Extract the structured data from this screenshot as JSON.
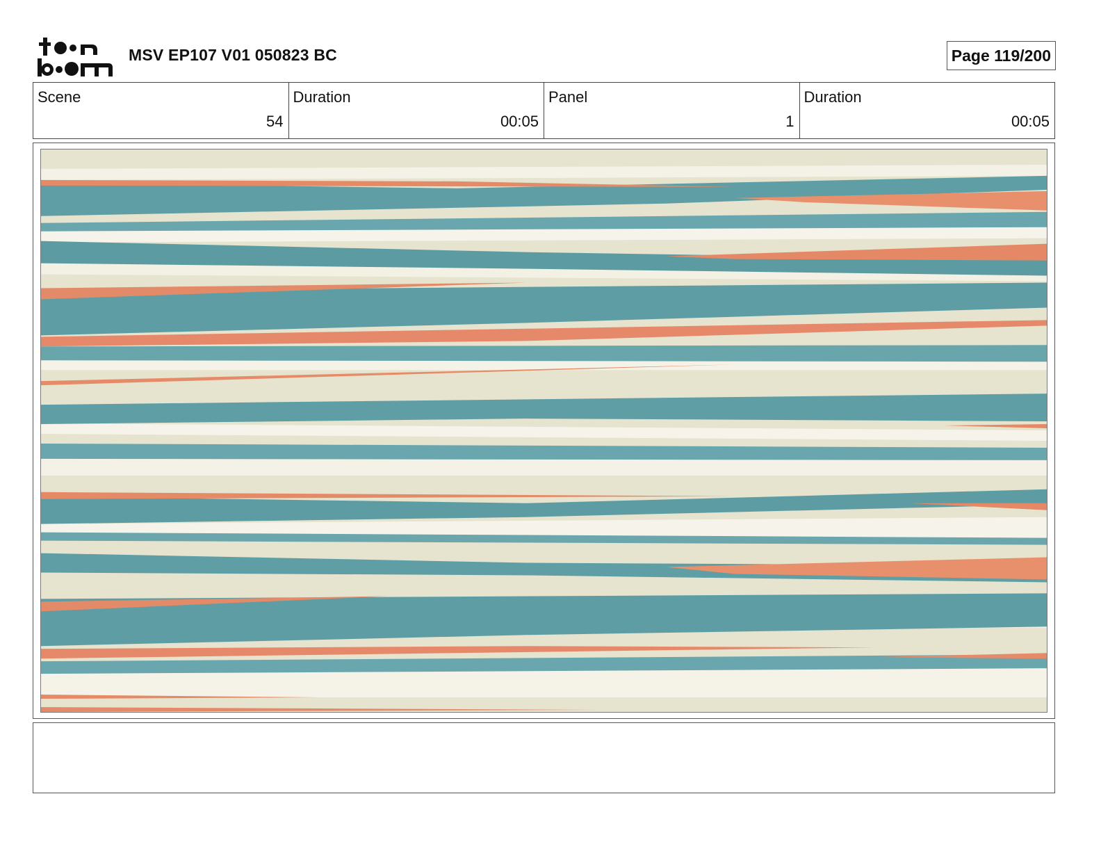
{
  "header": {
    "logo_text": "toon boom",
    "title": "MSV EP107 V01 050823 BC",
    "page_label": "Page 119/200"
  },
  "info": {
    "scene": {
      "label": "Scene",
      "value": "54"
    },
    "scene_duration": {
      "label": "Duration",
      "value": "00:05"
    },
    "panel": {
      "label": "Panel",
      "value": "1"
    },
    "panel_duration": {
      "label": "Duration",
      "value": "00:05"
    }
  },
  "artwork": {
    "description_icon": "striped-panel-artwork",
    "colors": {
      "teal": "#5e9fa6",
      "coral": "#e58a66",
      "cream": "#f1efe1",
      "beige": "#e2dfca"
    }
  },
  "notes": {
    "text": ""
  }
}
